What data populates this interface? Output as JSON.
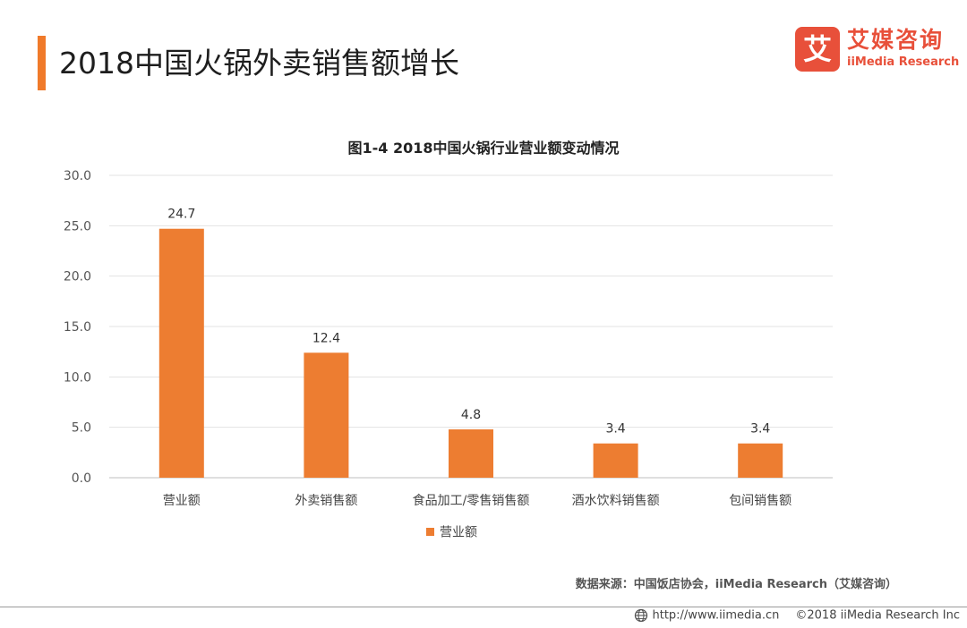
{
  "header": {
    "title": "2018中国火锅外卖销售额增长",
    "accent_color": "#f07a2a"
  },
  "logo": {
    "mark": "艾",
    "name_cn": "艾媒咨询",
    "name_en": "iiMedia Research",
    "color": "#e8503a"
  },
  "chart_data": {
    "type": "bar",
    "title": "图1-4 2018中国火锅行业营业额变动情况",
    "categories": [
      "营业额",
      "外卖销售额",
      "食品加工/零售销售额",
      "酒水饮料销售额",
      "包间销售额"
    ],
    "series": [
      {
        "name": "营业额",
        "values": [
          24.7,
          12.4,
          4.8,
          3.4,
          3.4
        ],
        "color": "#ed7d31"
      }
    ],
    "value_labels": [
      "24.7",
      "12.4",
      "4.8",
      "3.4",
      "3.4"
    ],
    "yticks": [
      0,
      5,
      10,
      15,
      20,
      25,
      30
    ],
    "ytick_labels": [
      "0.0",
      "5.0",
      "10.0",
      "15.0",
      "20.0",
      "25.0",
      "30.0"
    ],
    "ylim": [
      0,
      30
    ],
    "xlabel": "",
    "ylabel": "",
    "grid": true,
    "legend_position": "bottom"
  },
  "source": "数据来源：中国饭店协会，iiMedia Research（艾媒咨询）",
  "footer": {
    "url": "http://www.iimedia.cn",
    "copyright": "©2018 iiMedia Research Inc"
  }
}
